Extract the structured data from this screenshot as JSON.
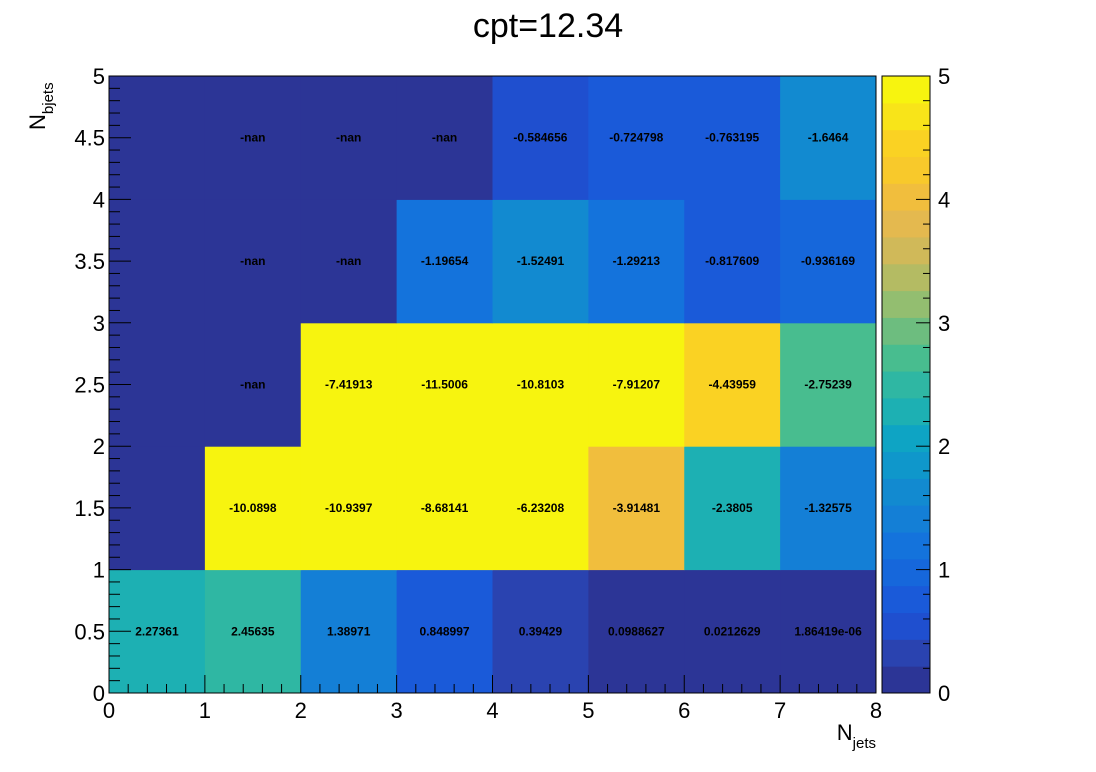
{
  "chart_data": {
    "type": "heatmap",
    "title": "cpt=12.34",
    "xlabel": "N",
    "xlabel_sub": "jets",
    "ylabel": "N",
    "ylabel_sub": "bjets",
    "xlim": [
      0,
      8
    ],
    "ylim": [
      0,
      5
    ],
    "zlim": [
      0,
      5
    ],
    "x_ticks": [
      "0",
      "1",
      "2",
      "3",
      "4",
      "5",
      "6",
      "7",
      "8"
    ],
    "y_ticks": [
      "0",
      "0.5",
      "1",
      "1.5",
      "2",
      "2.5",
      "3",
      "3.5",
      "4",
      "4.5",
      "5"
    ],
    "colorbar_ticks": [
      "0",
      "1",
      "2",
      "3",
      "4",
      "5"
    ],
    "cell_labels": [
      [
        "2.27361",
        "2.45635",
        "1.38971",
        "0.848997",
        "0.39429",
        "0.0988627",
        "0.0212629",
        "1.86419e-06"
      ],
      [
        "",
        "-10.0898",
        "-10.9397",
        "-8.68141",
        "-6.23208",
        "-3.91481",
        "-2.3805",
        "-1.32575"
      ],
      [
        "",
        "-nan",
        "-7.41913",
        "-11.5006",
        "-10.8103",
        "-7.91207",
        "-4.43959",
        "-2.75239"
      ],
      [
        "",
        "-nan",
        "-nan",
        "-1.19654",
        "-1.52491",
        "-1.29213",
        "-0.817609",
        "-0.936169"
      ],
      [
        "",
        "-nan",
        "-nan",
        "-nan",
        "-0.584656",
        "-0.724798",
        "-0.763195",
        "-1.6464"
      ]
    ],
    "cell_color_values": [
      [
        2.27361,
        2.45635,
        1.38971,
        0.848997,
        0.39429,
        0.0988627,
        0.0212629,
        1.86419e-06
      ],
      [
        0.2,
        5,
        5,
        5,
        5,
        3.91481,
        2.3805,
        1.32575
      ],
      [
        0.2,
        0.05,
        5,
        5,
        5,
        5,
        4.43959,
        2.75239
      ],
      [
        0.2,
        0.05,
        0.05,
        1.19654,
        1.52491,
        1.29213,
        0.817609,
        0.936169
      ],
      [
        0.2,
        0.05,
        0.05,
        0.05,
        0.584656,
        0.724798,
        0.763195,
        1.6464
      ]
    ],
    "palette": [
      "#2c3596",
      "#2a43b0",
      "#1f4fcf",
      "#1a5ad9",
      "#1667db",
      "#1473dc",
      "#147fd6",
      "#128ad0",
      "#0f97cb",
      "#0ea4c4",
      "#1db0b3",
      "#2fb7a3",
      "#48bd8f",
      "#6dbd7f",
      "#93be70",
      "#b4bb63",
      "#d0b959",
      "#e4b94f",
      "#f1be3d",
      "#f8c92b",
      "#fad223",
      "#f8e419",
      "#f7f40f"
    ]
  }
}
